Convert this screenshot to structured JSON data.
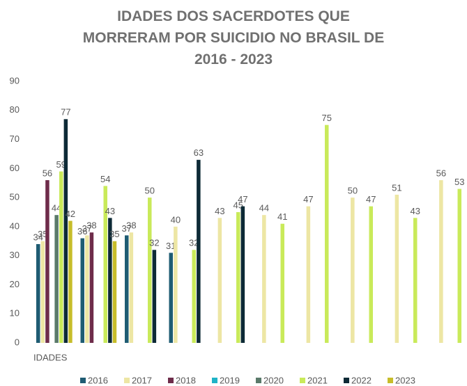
{
  "chart_data": {
    "type": "bar",
    "title": "IDADES DOS SACERDOTES QUE MORRERAM POR SUICIDIO NO BRASIL DE 2016 - 2023",
    "x_label": "IDADES",
    "categories": [
      null,
      null,
      null,
      null,
      null,
      null,
      null,
      null,
      null,
      null
    ],
    "series": [
      {
        "name": "2016",
        "color": "#1f5c73",
        "values": [
          34,
          36,
          37,
          31,
          null,
          null,
          null,
          null,
          null,
          null
        ]
      },
      {
        "name": "2017",
        "color": "#ede6a4",
        "values": [
          35,
          37,
          38,
          40,
          43,
          44,
          47,
          50,
          51,
          56
        ]
      },
      {
        "name": "2018",
        "color": "#6e2c4a",
        "values": [
          56,
          38,
          null,
          null,
          null,
          null,
          null,
          null,
          null,
          null
        ]
      },
      {
        "name": "2019",
        "color": "#1fb3c7",
        "values": [
          null,
          null,
          null,
          null,
          null,
          null,
          null,
          null,
          null,
          null
        ]
      },
      {
        "name": "2020",
        "color": "#5a7a6a",
        "values": [
          44,
          null,
          null,
          null,
          null,
          null,
          null,
          null,
          null,
          null
        ]
      },
      {
        "name": "2021",
        "color": "#c9ea5a",
        "values": [
          59,
          54,
          50,
          32,
          45,
          41,
          75,
          47,
          43,
          53
        ]
      },
      {
        "name": "2022",
        "color": "#0d2a36",
        "values": [
          77,
          43,
          32,
          63,
          47,
          null,
          null,
          null,
          null,
          null
        ]
      },
      {
        "name": "2023",
        "color": "#c7bd2a",
        "values": [
          42,
          35,
          null,
          null,
          null,
          null,
          null,
          null,
          null,
          null
        ]
      }
    ],
    "ylim": [
      0,
      90
    ],
    "yticks": [
      0,
      10,
      20,
      30,
      40,
      50,
      60,
      70,
      80,
      90
    ],
    "grid": false,
    "legend": "bottom"
  }
}
